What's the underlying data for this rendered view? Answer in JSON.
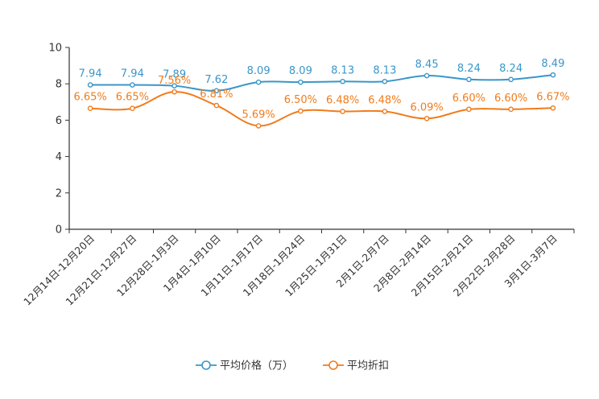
{
  "chart_data": {
    "type": "line",
    "title": "",
    "xlabel": "",
    "ylabel": "",
    "ylim": [
      0,
      10
    ],
    "yticks": [
      0,
      2,
      4,
      6,
      8,
      10
    ],
    "grid": false,
    "legend_position": "bottom",
    "categories": [
      "12月14日-12月20日",
      "12月21日-12月27日",
      "12月28日-1月3日",
      "1月4日-1月10日",
      "1月11日-1月17日",
      "1月18日-1月24日",
      "1月25日-1月31日",
      "2月1日-2月7日",
      "2月8日-2月14日",
      "2月15日-2月21日",
      "2月22日-2月28日",
      "3月1日-3月7日"
    ],
    "series": [
      {
        "name": "平均价格（万）",
        "color": "#3a96c8",
        "values": [
          7.94,
          7.94,
          7.89,
          7.62,
          8.09,
          8.09,
          8.13,
          8.13,
          8.45,
          8.24,
          8.24,
          8.49
        ],
        "labels": [
          "7.94",
          "7.94",
          "7.89",
          "7.62",
          "8.09",
          "8.09",
          "8.13",
          "8.13",
          "8.45",
          "8.24",
          "8.24",
          "8.49"
        ]
      },
      {
        "name": "平均折扣",
        "color": "#f07c1c",
        "values": [
          6.65,
          6.65,
          7.56,
          6.81,
          5.69,
          6.5,
          6.48,
          6.48,
          6.09,
          6.6,
          6.6,
          6.67
        ],
        "labels": [
          "6.65%",
          "6.65%",
          "7.56%",
          "6.81%",
          "5.69%",
          "6.50%",
          "6.48%",
          "6.48%",
          "6.09%",
          "6.60%",
          "6.60%",
          "6.67%"
        ]
      }
    ]
  }
}
